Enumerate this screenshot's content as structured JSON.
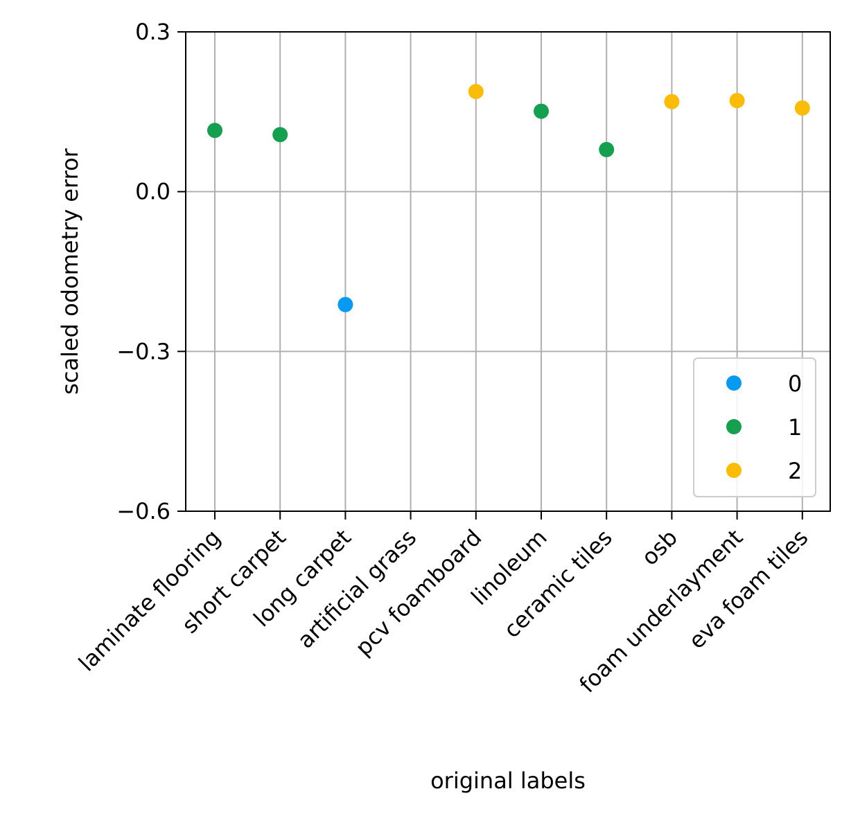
{
  "chart_data": {
    "type": "scatter",
    "title": "",
    "xlabel": "original labels",
    "ylabel": "scaled odometry error",
    "categories": [
      "laminate flooring",
      "short carpet",
      "long carpet",
      "artificial grass",
      "pcv foamboard",
      "linoleum",
      "ceramic tiles",
      "osb",
      "foam underlayment",
      "eva foam tiles"
    ],
    "ylim": [
      -0.6,
      0.3
    ],
    "yticks": [
      0.3,
      0.0,
      -0.3,
      -0.6
    ],
    "ytick_labels": [
      "0.3",
      "0.0",
      "−0.3",
      "−0.6"
    ],
    "grid": true,
    "legend_position": "lower-right",
    "series": [
      {
        "name": "0",
        "color": "#069af3",
        "points": [
          {
            "category": "long carpet",
            "y": -0.212
          }
        ]
      },
      {
        "name": "1",
        "color": "#15a050",
        "points": [
          {
            "category": "laminate flooring",
            "y": 0.115
          },
          {
            "category": "short carpet",
            "y": 0.107
          },
          {
            "category": "linoleum",
            "y": 0.151
          },
          {
            "category": "ceramic tiles",
            "y": 0.079
          }
        ]
      },
      {
        "name": "2",
        "color": "#fbbc05",
        "points": [
          {
            "category": "pcv foamboard",
            "y": 0.188
          },
          {
            "category": "osb",
            "y": 0.169
          },
          {
            "category": "foam underlayment",
            "y": 0.171
          },
          {
            "category": "eva foam tiles",
            "y": 0.157
          }
        ]
      }
    ]
  }
}
